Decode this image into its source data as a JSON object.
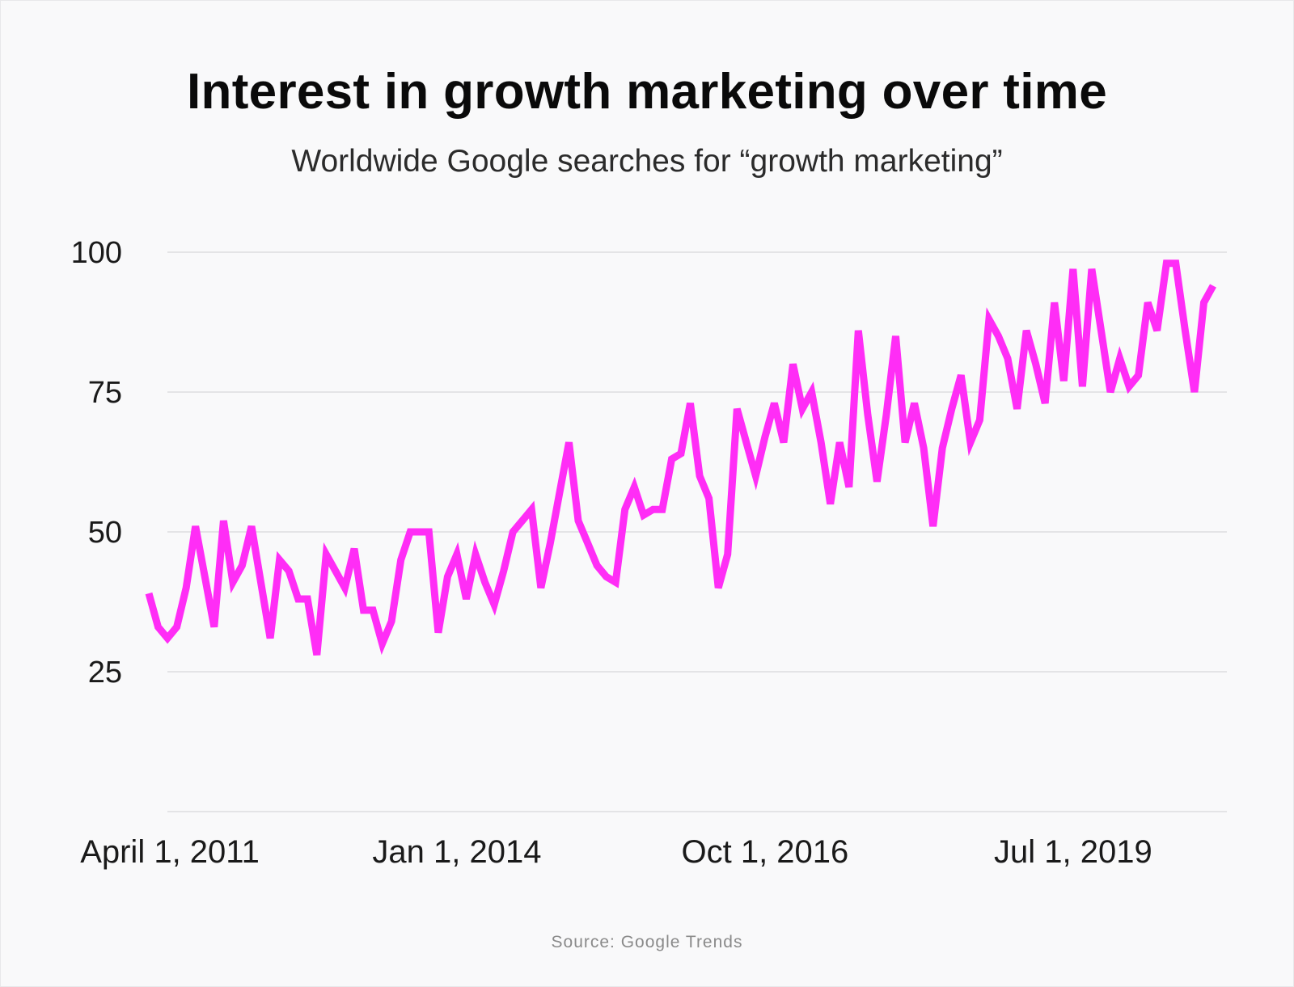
{
  "title": "Interest in growth marketing over time",
  "subtitle": "Worldwide Google searches for “growth marketing”",
  "source": "Source: Google Trends",
  "colors": {
    "line": "#ff2df6",
    "grid": "#e4e4e6",
    "text": "#1a1a1a",
    "background": "#f9f9fa"
  },
  "chart_data": {
    "type": "line",
    "title": "Interest in growth marketing over time",
    "subtitle": "Worldwide Google searches for “growth marketing”",
    "xlabel": "",
    "ylabel": "",
    "grid": true,
    "ylim": [
      0,
      100
    ],
    "yticks": [
      25,
      50,
      75,
      100
    ],
    "xticks": [
      {
        "label": "April 1, 2011",
        "index": 0
      },
      {
        "label": "Jan 1, 2014",
        "index": 33
      },
      {
        "label": "Oct 1, 2016",
        "index": 66
      },
      {
        "label": "Jul 1, 2019",
        "index": 99
      }
    ],
    "x_start": "2011-04",
    "x_step": "1 month",
    "series": [
      {
        "name": "growth marketing",
        "values": [
          39,
          33,
          31,
          33,
          40,
          51,
          42,
          33,
          52,
          41,
          44,
          51,
          41,
          31,
          45,
          43,
          38,
          38,
          28,
          46,
          43,
          40,
          47,
          36,
          36,
          30,
          34,
          45,
          50,
          50,
          50,
          32,
          42,
          46,
          38,
          46,
          41,
          37,
          43,
          50,
          52,
          54,
          40,
          48,
          57,
          66,
          52,
          48,
          44,
          42,
          41,
          54,
          58,
          53,
          54,
          54,
          63,
          64,
          73,
          60,
          56,
          40,
          46,
          72,
          66,
          60,
          67,
          73,
          66,
          80,
          72,
          75,
          66,
          55,
          66,
          58,
          86,
          71,
          59,
          71,
          85,
          66,
          73,
          65,
          51,
          65,
          72,
          78,
          66,
          70,
          88,
          85,
          81,
          72,
          86,
          80,
          73,
          91,
          77,
          97,
          76,
          97,
          86,
          75,
          81,
          76,
          78,
          91,
          86,
          98,
          98,
          86,
          75,
          91,
          94
        ]
      }
    ]
  }
}
